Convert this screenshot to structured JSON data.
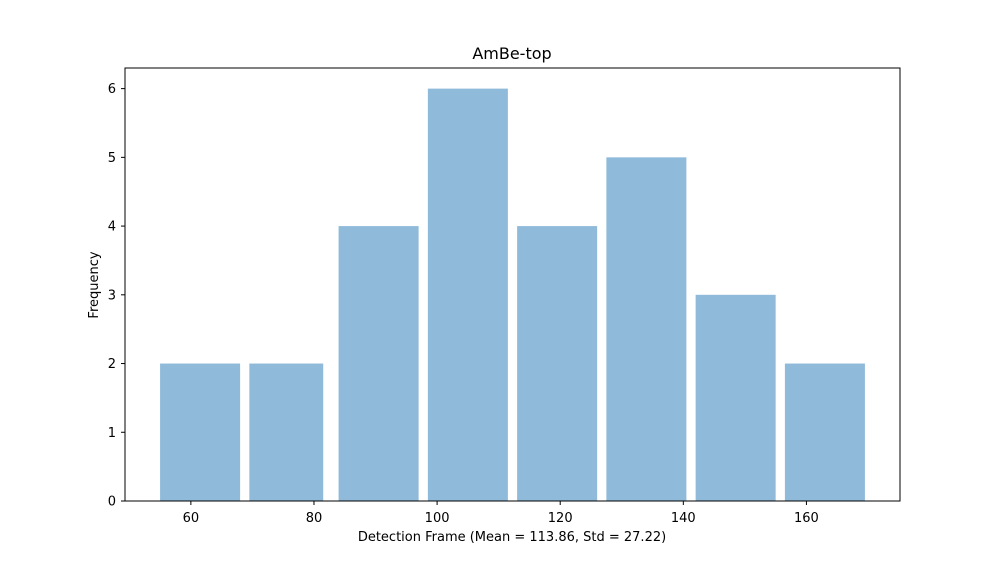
{
  "chart_data": {
    "type": "bar",
    "title": "AmBe-top",
    "xlabel": "Detection Frame (Mean = 113.86, Std = 27.22)",
    "ylabel": "Frequency",
    "bins": [
      [
        55.0,
        68.0
      ],
      [
        69.5,
        81.5
      ],
      [
        84.0,
        97.0
      ],
      [
        98.5,
        111.5
      ],
      [
        113.0,
        126.0
      ],
      [
        127.5,
        140.5
      ],
      [
        142.0,
        155.0
      ],
      [
        156.5,
        169.5
      ]
    ],
    "values": [
      2,
      2,
      4,
      6,
      4,
      5,
      3,
      2
    ],
    "xlim": [
      49.3,
      175.2
    ],
    "ylim": [
      0,
      6.3
    ],
    "xticks": [
      60,
      80,
      100,
      120,
      140,
      160
    ],
    "yticks": [
      0,
      1,
      2,
      3,
      4,
      5,
      6
    ],
    "bar_color": "#8fbad9",
    "grid": false
  }
}
